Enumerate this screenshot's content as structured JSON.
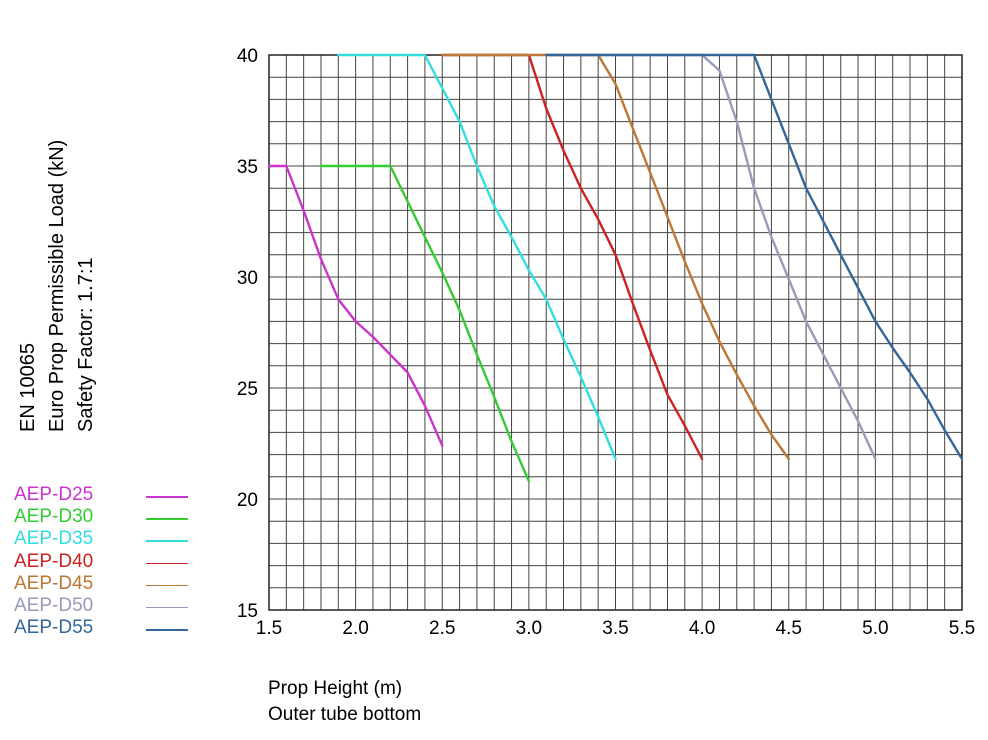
{
  "chart_data": {
    "type": "line",
    "ylabel_lines": [
      "EN 10065",
      "Euro Prop Permissible Load (kN)",
      "Safety Factor: 1.7:1"
    ],
    "xlabel_lines": [
      "Prop Height  (m)",
      "Outer tube bottom"
    ],
    "xlim": [
      1.5,
      5.5
    ],
    "ylim": [
      15,
      40
    ],
    "x_ticks": [
      "1.5",
      "2.0",
      "2.5",
      "3.0",
      "3.5",
      "4.0",
      "4.5",
      "5.0",
      "5.5"
    ],
    "y_ticks": [
      "15",
      "20",
      "25",
      "30",
      "35",
      "40"
    ],
    "grid": true,
    "legend_position": "left",
    "series": [
      {
        "name": "AEP-D25",
        "color": "#cc33cc",
        "x": [
          1.5,
          1.6,
          1.7,
          1.8,
          1.9,
          2.0,
          2.1,
          2.2,
          2.3,
          2.4,
          2.5
        ],
        "y": [
          35,
          35,
          33.0,
          30.8,
          29.0,
          28.0,
          27.3,
          26.5,
          25.7,
          24.2,
          22.4
        ]
      },
      {
        "name": "AEP-D30",
        "color": "#33cc33",
        "x": [
          1.8,
          2.2,
          2.3,
          2.4,
          2.5,
          2.6,
          2.7,
          2.8,
          2.9,
          3.0
        ],
        "y": [
          35,
          35,
          33.4,
          31.8,
          30.2,
          28.5,
          26.5,
          24.6,
          22.6,
          20.8
        ]
      },
      {
        "name": "AEP-D35",
        "color": "#33dddd",
        "x": [
          1.9,
          2.4,
          2.5,
          2.6,
          2.7,
          2.8,
          2.9,
          3.0,
          3.1,
          3.2,
          3.3,
          3.4,
          3.5
        ],
        "y": [
          40,
          40,
          38.5,
          37.0,
          35.0,
          33.2,
          31.8,
          30.3,
          29.0,
          27.2,
          25.5,
          23.7,
          21.8
        ]
      },
      {
        "name": "AEP-D40",
        "color": "#cc2222",
        "x": [
          2.5,
          3.0,
          3.1,
          3.2,
          3.3,
          3.4,
          3.5,
          3.6,
          3.7,
          3.8,
          3.9,
          4.0
        ],
        "y": [
          40,
          40,
          37.6,
          35.7,
          34.0,
          32.6,
          31.0,
          28.8,
          26.7,
          24.7,
          23.3,
          21.8
        ]
      },
      {
        "name": "AEP-D45",
        "color": "#bb7733",
        "x": [
          2.5,
          3.4,
          3.5,
          3.6,
          3.7,
          3.8,
          3.9,
          4.0,
          4.1,
          4.2,
          4.3,
          4.4,
          4.5
        ],
        "y": [
          40,
          40,
          38.7,
          36.7,
          34.7,
          32.7,
          30.7,
          28.8,
          27.1,
          25.6,
          24.2,
          22.9,
          21.8
        ]
      },
      {
        "name": "AEP-D50",
        "color": "#9999bb",
        "x": [
          3.1,
          4.0,
          4.1,
          4.2,
          4.3,
          4.4,
          4.5,
          4.6,
          4.7,
          4.8,
          4.9,
          5.0
        ],
        "y": [
          40,
          40,
          39.3,
          37.0,
          34.0,
          31.8,
          29.9,
          28.0,
          26.5,
          25.0,
          23.5,
          21.8
        ]
      },
      {
        "name": "AEP-D55",
        "color": "#336699",
        "x": [
          3.1,
          4.3,
          4.4,
          4.5,
          4.6,
          4.7,
          4.8,
          4.9,
          5.0,
          5.1,
          5.2,
          5.3,
          5.4,
          5.5
        ],
        "y": [
          40,
          40,
          38.0,
          36.0,
          34.0,
          32.5,
          31.0,
          29.5,
          28.0,
          26.8,
          25.7,
          24.5,
          23.1,
          21.8
        ]
      }
    ]
  }
}
